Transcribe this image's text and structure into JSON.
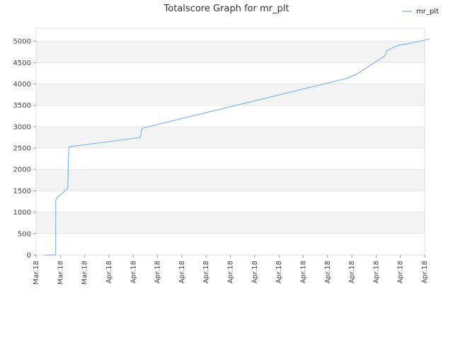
{
  "chart_data": {
    "type": "line",
    "title": "Totalscore Graph for mr_plt",
    "xlabel": "",
    "ylabel": "",
    "ylim": [
      0,
      5300
    ],
    "y_ticks": [
      0,
      500,
      1000,
      1500,
      2000,
      2500,
      3000,
      3500,
      4000,
      4500,
      5000
    ],
    "x_ticks": [
      "Mar.18",
      "Mar.18",
      "Mar.18",
      "Apr.18",
      "Apr.18",
      "Apr.18",
      "Apr.18",
      "Apr.18",
      "Apr.18",
      "Apr.18",
      "Apr.18",
      "Apr.18",
      "Apr.18",
      "Apr.18",
      "Apr.18",
      "Apr.18",
      "Apr.18"
    ],
    "grid": "horizontal bands",
    "legend": {
      "position": "top-right"
    },
    "series": [
      {
        "name": "mr_plt",
        "color": "#88bbee",
        "x": [
          0.35,
          0.8,
          0.81,
          0.85,
          1.3,
          1.32,
          1.33,
          1.35,
          1.37,
          4.3,
          4.35,
          4.4,
          12.8,
          13.2,
          14.35,
          14.45,
          14.55,
          14.9,
          15.3,
          16.2
        ],
        "y": [
          0,
          0,
          1280,
          1330,
          1560,
          1800,
          2300,
          2500,
          2530,
          2750,
          2950,
          2970,
          4130,
          4230,
          4650,
          4780,
          4810,
          4900,
          4940,
          5050
        ]
      }
    ]
  }
}
